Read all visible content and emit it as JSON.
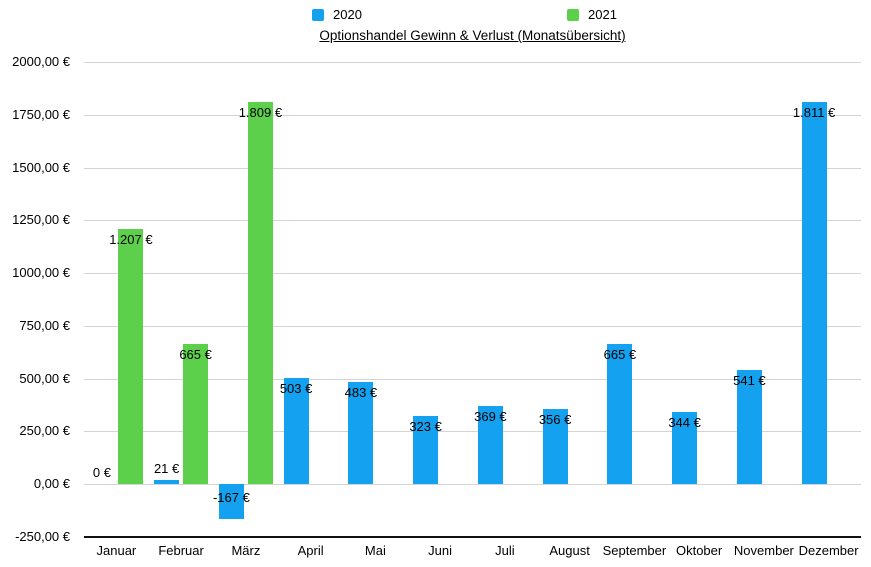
{
  "chart_data": {
    "type": "bar",
    "title": "Optionshandel Gewinn & Verlust (Monatsübersicht)",
    "categories": [
      "Januar",
      "Februar",
      "März",
      "April",
      "Mai",
      "Juni",
      "Juli",
      "August",
      "September",
      "Oktober",
      "November",
      "Dezember"
    ],
    "series": [
      {
        "name": "2020",
        "color": "#14a1ef",
        "values": [
          0,
          21,
          -167,
          503,
          483,
          323,
          369,
          356,
          665,
          344,
          541,
          1811
        ],
        "labels": [
          "0 €",
          "21 €",
          "-167 €",
          "503 €",
          "483 €",
          "323 €",
          "369 €",
          "356 €",
          "665 €",
          "344 €",
          "541 €",
          "1.811 €"
        ]
      },
      {
        "name": "2021",
        "color": "#5cd04a",
        "values": [
          1207,
          665,
          1809,
          null,
          null,
          null,
          null,
          null,
          null,
          null,
          null,
          null
        ],
        "labels": [
          "1.207 €",
          "665 €",
          "1.809 €",
          null,
          null,
          null,
          null,
          null,
          null,
          null,
          null,
          null
        ]
      }
    ],
    "y_axis": {
      "min": -250,
      "max": 2000,
      "step": 250,
      "tick_labels": [
        "2000,00 €",
        "1750,00 €",
        "1500,00 €",
        "1250,00 €",
        "1000,00 €",
        "750,00 €",
        "500,00 €",
        "250,00 €",
        "0,00 €",
        "-250,00 €"
      ]
    },
    "grid": true,
    "legend_position": "top",
    "colors": {
      "gridline": "#d4d4d4",
      "axis": "#111111",
      "text": "#000000"
    }
  }
}
